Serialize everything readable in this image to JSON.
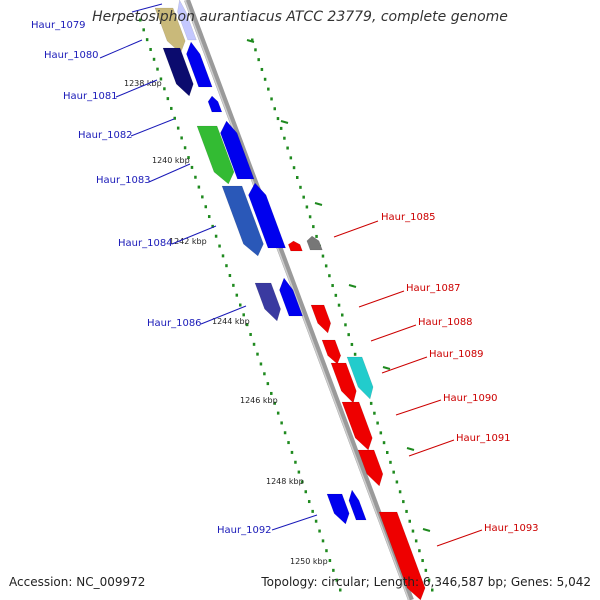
{
  "title": "Herpetosiphon aurantiacus ATCC 23779, complete genome",
  "accession": "Accession: NC_009972",
  "topology": "Topology: circular; Length: 6,346,587 bp; Genes: 5,042",
  "colors": {
    "backbone": "#808080",
    "forward_label": "#1a1ab8",
    "reverse_label": "#cc0000",
    "forward_gene": "#0000ee",
    "reverse_gene": "#ee0000",
    "tick": "#1f8a1f"
  },
  "ticks": [
    "1238 kbp",
    "1240 kbp",
    "1242 kbp",
    "1244 kbp",
    "1246 kbp",
    "1248 kbp",
    "1250 kbp"
  ],
  "forward_labels": [
    "Haur_1079",
    "Haur_1080",
    "Haur_1081",
    "Haur_1082",
    "Haur_1083",
    "Haur_1084",
    "Haur_1086",
    "Haur_1092"
  ],
  "reverse_labels": [
    "Haur_1085",
    "Haur_1087",
    "Haur_1088",
    "Haur_1089",
    "Haur_1090",
    "Haur_1091",
    "Haur_1093"
  ]
}
